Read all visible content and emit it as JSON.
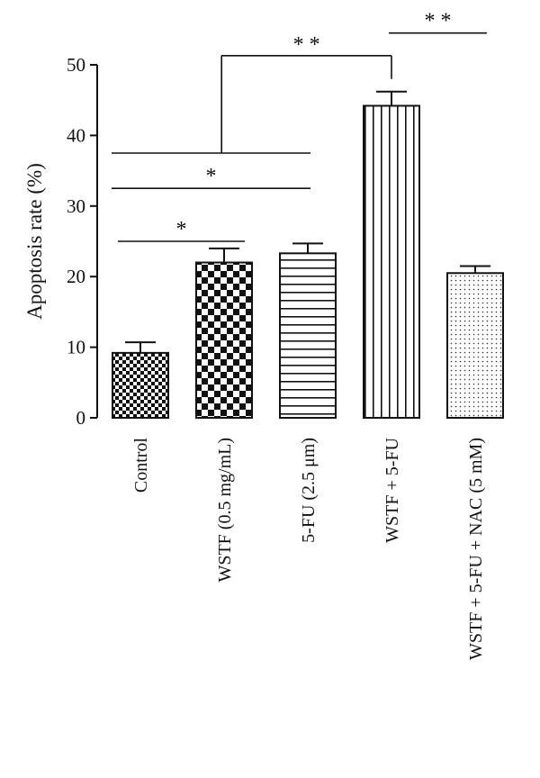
{
  "chart_data": {
    "type": "bar",
    "title": "",
    "xlabel": "",
    "ylabel": "Apoptosis rate (%)",
    "ylim": [
      0,
      50
    ],
    "yticks": [
      0,
      10,
      20,
      30,
      40,
      50
    ],
    "grid": false,
    "legend": "none",
    "categories": [
      "Control",
      "WSTF (0.5 mg/mL)",
      "5-FU (2.5 μm)",
      "WSTF + 5-FU",
      "WSTF + 5-FU + NAC (5 mM)"
    ],
    "values": [
      9.2,
      22.0,
      23.3,
      44.2,
      20.5
    ],
    "errors": [
      1.5,
      2.0,
      1.4,
      2.0,
      1.0
    ],
    "patterns": [
      "small-checker",
      "large-checker",
      "horizontal-lines",
      "vertical-lines",
      "dots"
    ],
    "significance": [
      {
        "from": 0,
        "to": 1,
        "label": "*",
        "y": 25.0
      },
      {
        "from": 0,
        "to": 2,
        "label": "*",
        "y": 32.5
      },
      {
        "from": 0,
        "to": 2,
        "label": "",
        "y": 37.5
      },
      {
        "from": 0.97,
        "to": 3,
        "label": "* *",
        "y": 51.3,
        "drop_from": 37.5,
        "drop_to": 48.0
      },
      {
        "from": 3,
        "to": 4,
        "label": "* *",
        "y": 54.5
      }
    ]
  },
  "colors": {
    "bar_stroke": "#111111",
    "pattern_dark": "#111111",
    "pattern_light": "#ffffff"
  }
}
